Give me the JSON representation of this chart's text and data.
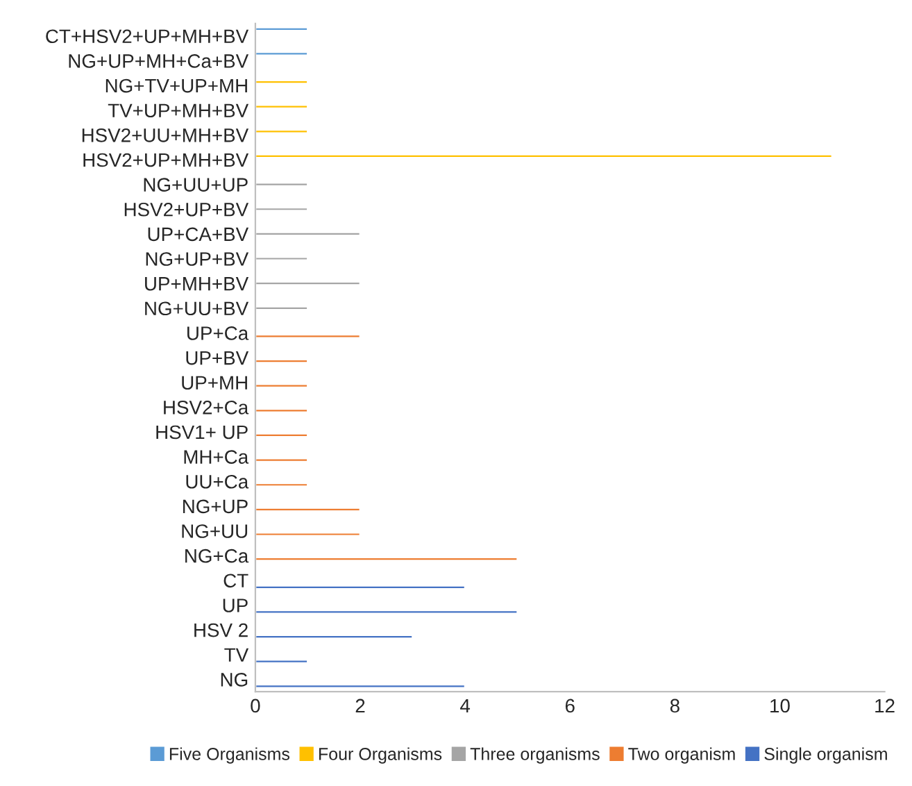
{
  "chart_data": {
    "type": "bar",
    "orientation": "horizontal",
    "categories": [
      "CT+HSV2+UP+MH+BV",
      "NG+UP+MH+Ca+BV",
      "NG+TV+UP+MH",
      "TV+UP+MH+BV",
      "HSV2+UU+MH+BV",
      "HSV2+UP+MH+BV",
      "NG+UU+UP",
      "HSV2+UP+BV",
      "UP+CA+BV",
      "NG+UP+BV",
      "UP+MH+BV",
      "NG+UU+BV",
      "UP+Ca",
      "UP+BV",
      "UP+MH",
      "HSV2+Ca",
      "HSV1+ UP",
      "MH+Ca",
      "UU+Ca",
      "NG+UP",
      "NG+UU",
      "NG+Ca",
      "CT",
      "UP",
      "HSV 2",
      "TV",
      "NG"
    ],
    "series": [
      {
        "name": "Five Organisms",
        "color": "#5b9bd5",
        "values": [
          1,
          1,
          null,
          null,
          null,
          null,
          null,
          null,
          null,
          null,
          null,
          null,
          null,
          null,
          null,
          null,
          null,
          null,
          null,
          null,
          null,
          null,
          null,
          null,
          null,
          null,
          null
        ]
      },
      {
        "name": "Four Organisms",
        "color": "#ffc000",
        "values": [
          null,
          null,
          1,
          1,
          1,
          11,
          null,
          null,
          null,
          null,
          null,
          null,
          null,
          null,
          null,
          null,
          null,
          null,
          null,
          null,
          null,
          null,
          null,
          null,
          null,
          null,
          null
        ]
      },
      {
        "name": "Three organisms",
        "color": "#a5a5a5",
        "values": [
          null,
          null,
          null,
          null,
          null,
          null,
          1,
          1,
          2,
          1,
          2,
          1,
          null,
          null,
          null,
          null,
          null,
          null,
          null,
          null,
          null,
          null,
          null,
          null,
          null,
          null,
          null
        ]
      },
      {
        "name": "Two organism",
        "color": "#ed7d31",
        "values": [
          null,
          null,
          null,
          null,
          null,
          null,
          null,
          null,
          null,
          null,
          null,
          null,
          2,
          1,
          1,
          1,
          1,
          1,
          1,
          2,
          2,
          5,
          null,
          null,
          null,
          null,
          null
        ]
      },
      {
        "name": "Single organism",
        "color": "#4472c4",
        "values": [
          null,
          null,
          null,
          null,
          null,
          null,
          null,
          null,
          null,
          null,
          null,
          null,
          null,
          null,
          null,
          null,
          null,
          null,
          null,
          null,
          null,
          null,
          4,
          5,
          3,
          1,
          4
        ]
      }
    ],
    "xlim": [
      0,
      12
    ],
    "xticks": [
      0,
      2,
      4,
      6,
      8,
      10,
      12
    ],
    "grid": false,
    "legend": "bottom"
  }
}
